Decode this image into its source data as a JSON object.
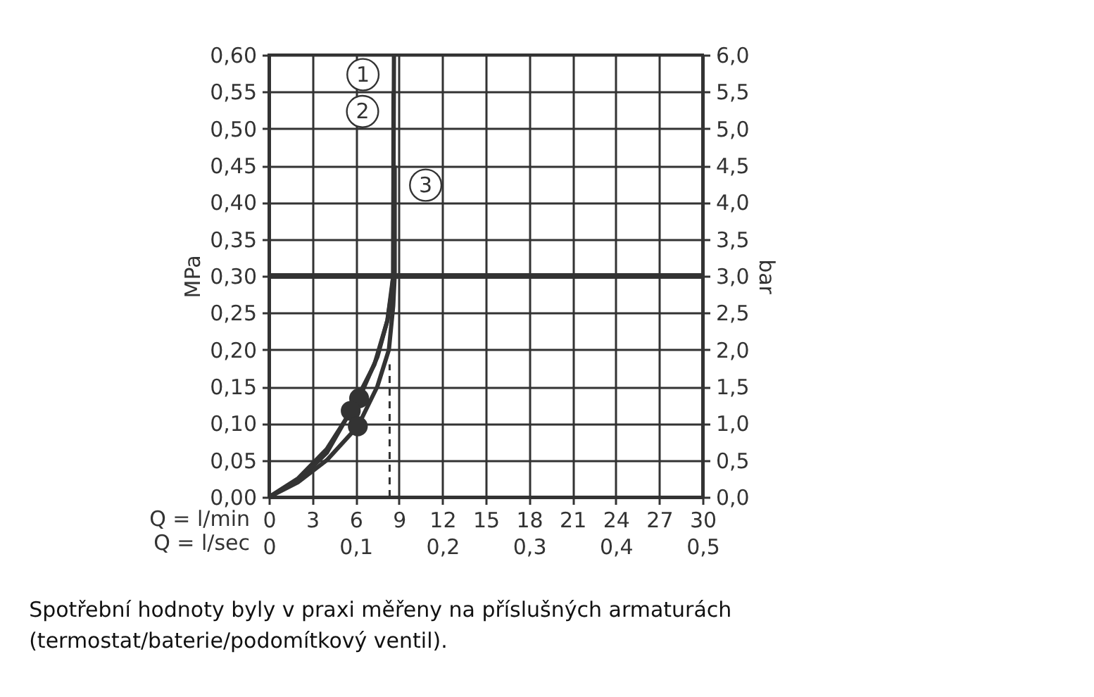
{
  "chart_data": {
    "type": "line",
    "series": [
      {
        "name": "1",
        "color": "#333333",
        "x": [
          0,
          2,
          4,
          6.24,
          7.5,
          8.2,
          8.5,
          8.6,
          8.65
        ],
        "values": [
          0,
          0.025,
          0.065,
          0.134,
          0.19,
          0.24,
          0.28,
          0.3,
          0.6
        ]
      },
      {
        "name": "2",
        "color": "#333333",
        "x": [
          0,
          2,
          4,
          5.66,
          7.3,
          8.2,
          8.6,
          8.62
        ],
        "values": [
          0,
          0.022,
          0.06,
          0.117,
          0.18,
          0.24,
          0.3,
          0.55
        ]
      },
      {
        "name": "3",
        "color": "#333333",
        "x": [
          0,
          2,
          4,
          6.15,
          7.5,
          8.3,
          8.6,
          8.7,
          8.7
        ],
        "values": [
          0,
          0.02,
          0.05,
          0.096,
          0.15,
          0.2,
          0.26,
          0.3,
          0.45
        ]
      },
      {
        "type": "scatter",
        "marker": "circle",
        "color": "#333333",
        "x": [
          6.24,
          5.66,
          6.15
        ],
        "values": [
          0.134,
          0.117,
          0.096
        ]
      },
      {
        "color": "#333333",
        "line_style": "dashed",
        "x": [
          8.35,
          8.35
        ],
        "values": [
          0,
          0.18
        ]
      }
    ],
    "xlabel": "Q = l/min",
    "x2label": "Q = l/sec",
    "ylabel": "MPa",
    "y2label": "bar",
    "xlim": [
      0,
      30
    ],
    "xticks": [
      0,
      3,
      6,
      9,
      12,
      15,
      18,
      21,
      24,
      27,
      30
    ],
    "x2lim": [
      0,
      0.5
    ],
    "x2ticks": [
      {
        "value": 0,
        "label": "0"
      },
      {
        "value": 0.1,
        "label": "0,1"
      },
      {
        "value": 0.2,
        "label": "0,2"
      },
      {
        "value": 0.3,
        "label": "0,3"
      },
      {
        "value": 0.4,
        "label": "0,4"
      },
      {
        "value": 0.5,
        "label": "0,5"
      }
    ],
    "ylim": [
      0,
      0.6
    ],
    "yticks": [
      {
        "value": 0,
        "label": "0,00"
      },
      {
        "value": 0.05,
        "label": "0,05"
      },
      {
        "value": 0.1,
        "label": "0,10"
      },
      {
        "value": 0.15,
        "label": "0,15"
      },
      {
        "value": 0.2,
        "label": "0,20"
      },
      {
        "value": 0.25,
        "label": "0,25"
      },
      {
        "value": 0.3,
        "label": "0,30"
      },
      {
        "value": 0.35,
        "label": "0,35"
      },
      {
        "value": 0.4,
        "label": "0,40"
      },
      {
        "value": 0.45,
        "label": "0,45"
      },
      {
        "value": 0.5,
        "label": "0,50"
      },
      {
        "value": 0.55,
        "label": "0,55"
      },
      {
        "value": 0.6,
        "label": "0,60"
      }
    ],
    "y2lim": [
      0,
      6
    ],
    "y2ticks": [
      {
        "value": 0,
        "label": "0,0"
      },
      {
        "value": 0.5,
        "label": "0,5"
      },
      {
        "value": 1,
        "label": "1,0"
      },
      {
        "value": 1.5,
        "label": "1,5"
      },
      {
        "value": 2,
        "label": "2,0"
      },
      {
        "value": 2.5,
        "label": "2,5"
      },
      {
        "value": 3,
        "label": "3,0"
      },
      {
        "value": 3.5,
        "label": "3,5"
      },
      {
        "value": 4,
        "label": "4,0"
      },
      {
        "value": 4.5,
        "label": "4,5"
      },
      {
        "value": 5,
        "label": "5,0"
      },
      {
        "value": 5.5,
        "label": "5,5"
      },
      {
        "value": 6,
        "label": "6,0"
      }
    ],
    "ref_lines": [
      {
        "axis": "y",
        "value": 0.3,
        "color": "#333333"
      }
    ],
    "grid": true,
    "annotations": [
      "Spotřební hodnoty byly v praxi měřeny na příslušných armaturách (termostat/baterie/podomítkový ventil)."
    ]
  }
}
